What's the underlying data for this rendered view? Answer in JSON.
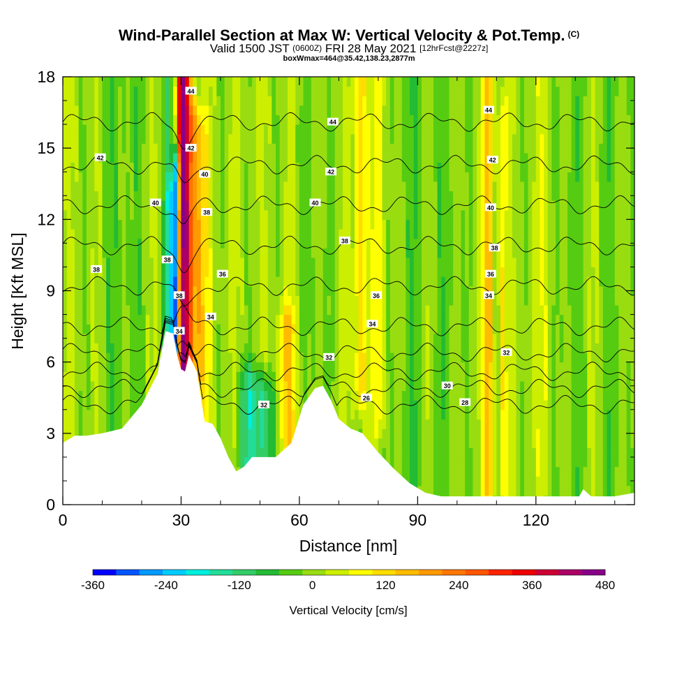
{
  "titles": {
    "main": "Wind-Parallel Section at Max W: Vertical Velocity & Pot.Temp.",
    "main_tag": "(C)",
    "valid_prefix": "Valid 1500 JST",
    "valid_utc": "(0600Z)",
    "valid_date": "FRI 28 May 2021",
    "forecast": "[12hrFcst@2227z]",
    "box": "boxWmax=464@35.42,138.23,2877m"
  },
  "colors": {
    "terrain": "#ffffff",
    "contour": "#000000",
    "background": "#ffffff"
  },
  "chart_data": {
    "type": "heatmap",
    "xlabel": "Distance [nm]",
    "ylabel": "Height [Kft MSL]",
    "xlim": [
      0,
      145
    ],
    "ylim": [
      0,
      18
    ],
    "xticks": [
      0,
      30,
      60,
      90,
      120
    ],
    "yticks": [
      0,
      3,
      6,
      9,
      12,
      15,
      18
    ],
    "colorbar": {
      "label": "Vertical Velocity [cm/s]",
      "min": -360,
      "max": 480,
      "step": 40,
      "tick_labels": [
        "-360",
        "-240",
        "-120",
        "0",
        "120",
        "240",
        "360",
        "480"
      ],
      "colors": [
        "#0000ff",
        "#0055ff",
        "#0099ff",
        "#00ccff",
        "#00eedd",
        "#22dd99",
        "#33cc66",
        "#22bb33",
        "#55cc11",
        "#99dd11",
        "#ccee00",
        "#ffff00",
        "#ffdd00",
        "#ffbb00",
        "#ff9900",
        "#ff7700",
        "#ff5500",
        "#ff2200",
        "#ee0000",
        "#cc0033",
        "#aa0066",
        "#880088"
      ]
    },
    "terrain": {
      "x": [
        0,
        3,
        6,
        10,
        15,
        20,
        24,
        26,
        28,
        29,
        30,
        31,
        32,
        34,
        36,
        38,
        40,
        42,
        44,
        46,
        48,
        50,
        54,
        58,
        61,
        64,
        66,
        68,
        70,
        73,
        76,
        80,
        84,
        88,
        92,
        96,
        100,
        110,
        120,
        131,
        132,
        134,
        136,
        140,
        145
      ],
      "height_kft": [
        2.6,
        2.9,
        2.9,
        3.0,
        3.2,
        4.2,
        5.5,
        7.3,
        7.2,
        6.3,
        5.7,
        5.6,
        6.3,
        5.6,
        3.5,
        3.4,
        2.8,
        2.0,
        1.4,
        1.6,
        2.0,
        2.0,
        2.0,
        2.6,
        4.2,
        4.9,
        5.0,
        4.4,
        3.6,
        3.2,
        3.0,
        2.2,
        1.5,
        0.9,
        0.5,
        0.35,
        0.35,
        0.35,
        0.35,
        0.35,
        0.65,
        0.35,
        0.35,
        0.35,
        0.5
      ]
    },
    "velocity_features": [
      {
        "x": 30.0,
        "width": 1.0,
        "value": 420,
        "bottom": 5.5,
        "top": 18
      },
      {
        "x": 31.6,
        "width": 1.1,
        "value": 320,
        "bottom": 5.6,
        "top": 18
      },
      {
        "x": 28.8,
        "width": 0.9,
        "value": -300,
        "bottom": 6.8,
        "top": 14
      },
      {
        "x": 27.6,
        "width": 1.4,
        "value": -150,
        "bottom": 7.0,
        "top": 13
      },
      {
        "x": 33.5,
        "width": 1.6,
        "value": 180,
        "bottom": 6.0,
        "top": 16
      },
      {
        "x": 35.6,
        "width": 1.6,
        "value": 80,
        "bottom": 4.0,
        "top": 15
      },
      {
        "x": 26.5,
        "width": 1.2,
        "value": -80,
        "bottom": 7.2,
        "top": 18
      },
      {
        "x": 57.0,
        "width": 2.6,
        "value": 120,
        "bottom": 3.2,
        "top": 7.5
      },
      {
        "x": 50.5,
        "width": 3.0,
        "value": -160,
        "bottom": 1.8,
        "top": 4.5
      },
      {
        "x": 46.5,
        "width": 2.5,
        "value": -110,
        "bottom": 1.5,
        "top": 5.0
      },
      {
        "x": 75.5,
        "width": 1.5,
        "value": 140,
        "bottom": 5.0,
        "top": 18
      },
      {
        "x": 80.5,
        "width": 1.6,
        "value": 80,
        "bottom": 4.0,
        "top": 18
      },
      {
        "x": 108.0,
        "width": 1.3,
        "value": 150,
        "bottom": 1.0,
        "top": 18
      },
      {
        "x": 111.5,
        "width": 1.0,
        "value": 90,
        "bottom": 1.0,
        "top": 16
      },
      {
        "x": 122.5,
        "width": 1.5,
        "value": 60,
        "bottom": 1.0,
        "top": 18
      },
      {
        "x": 15.0,
        "width": 6.0,
        "value": -50,
        "bottom": 3.0,
        "top": 18
      },
      {
        "x": 64.0,
        "width": 4.0,
        "value": -40,
        "bottom": 5.0,
        "top": 18
      },
      {
        "x": 88.0,
        "width": 5.0,
        "value": -50,
        "bottom": 1.0,
        "top": 18
      },
      {
        "x": 98.0,
        "width": 4.0,
        "value": -40,
        "bottom": 0.5,
        "top": 18
      },
      {
        "x": 128.0,
        "width": 5.0,
        "value": -40,
        "bottom": 0.5,
        "top": 18
      },
      {
        "x": 140.0,
        "width": 3.0,
        "value": -50,
        "bottom": 0.5,
        "top": 18
      }
    ],
    "theta_contours": [
      {
        "level": 26,
        "base": 4.2
      },
      {
        "level": 28,
        "base": 4.9
      },
      {
        "level": 30,
        "base": 5.6
      },
      {
        "level": 32,
        "base": 6.4
      },
      {
        "level": 34,
        "base": 7.5
      },
      {
        "level": 36,
        "base": 9.2
      },
      {
        "level": 38,
        "base": 10.9
      },
      {
        "level": 40,
        "base": 12.6
      },
      {
        "level": 42,
        "base": 14.3
      },
      {
        "level": 44,
        "base": 16.1
      }
    ],
    "contour_labels": [
      {
        "text": "42",
        "x": 9.5,
        "y": 14.6
      },
      {
        "text": "40",
        "x": 23.5,
        "y": 12.7
      },
      {
        "text": "38",
        "x": 8.5,
        "y": 9.9
      },
      {
        "text": "44",
        "x": 32.5,
        "y": 17.4
      },
      {
        "text": "42",
        "x": 32.5,
        "y": 15.0
      },
      {
        "text": "40",
        "x": 36.0,
        "y": 13.9
      },
      {
        "text": "38",
        "x": 36.5,
        "y": 12.3
      },
      {
        "text": "38",
        "x": 26.5,
        "y": 10.3
      },
      {
        "text": "38",
        "x": 29.5,
        "y": 8.8
      },
      {
        "text": "36",
        "x": 40.5,
        "y": 9.7
      },
      {
        "text": "34",
        "x": 37.5,
        "y": 7.9
      },
      {
        "text": "34",
        "x": 29.5,
        "y": 7.3
      },
      {
        "text": "44",
        "x": 68.5,
        "y": 16.1
      },
      {
        "text": "42",
        "x": 68.0,
        "y": 14.0
      },
      {
        "text": "40",
        "x": 64.0,
        "y": 12.7
      },
      {
        "text": "38",
        "x": 71.5,
        "y": 11.1
      },
      {
        "text": "36",
        "x": 79.5,
        "y": 8.8
      },
      {
        "text": "34",
        "x": 78.5,
        "y": 7.6
      },
      {
        "text": "32",
        "x": 67.5,
        "y": 6.2
      },
      {
        "text": "32",
        "x": 51.0,
        "y": 4.2
      },
      {
        "text": "26",
        "x": 77.0,
        "y": 4.5
      },
      {
        "text": "30",
        "x": 97.5,
        "y": 5.0
      },
      {
        "text": "28",
        "x": 102.0,
        "y": 4.3
      },
      {
        "text": "32",
        "x": 112.5,
        "y": 6.4
      },
      {
        "text": "44",
        "x": 108.0,
        "y": 16.6
      },
      {
        "text": "42",
        "x": 109.0,
        "y": 14.5
      },
      {
        "text": "40",
        "x": 108.5,
        "y": 12.5
      },
      {
        "text": "38",
        "x": 109.5,
        "y": 10.8
      },
      {
        "text": "36",
        "x": 108.5,
        "y": 9.7
      },
      {
        "text": "34",
        "x": 108.0,
        "y": 8.8
      }
    ]
  }
}
